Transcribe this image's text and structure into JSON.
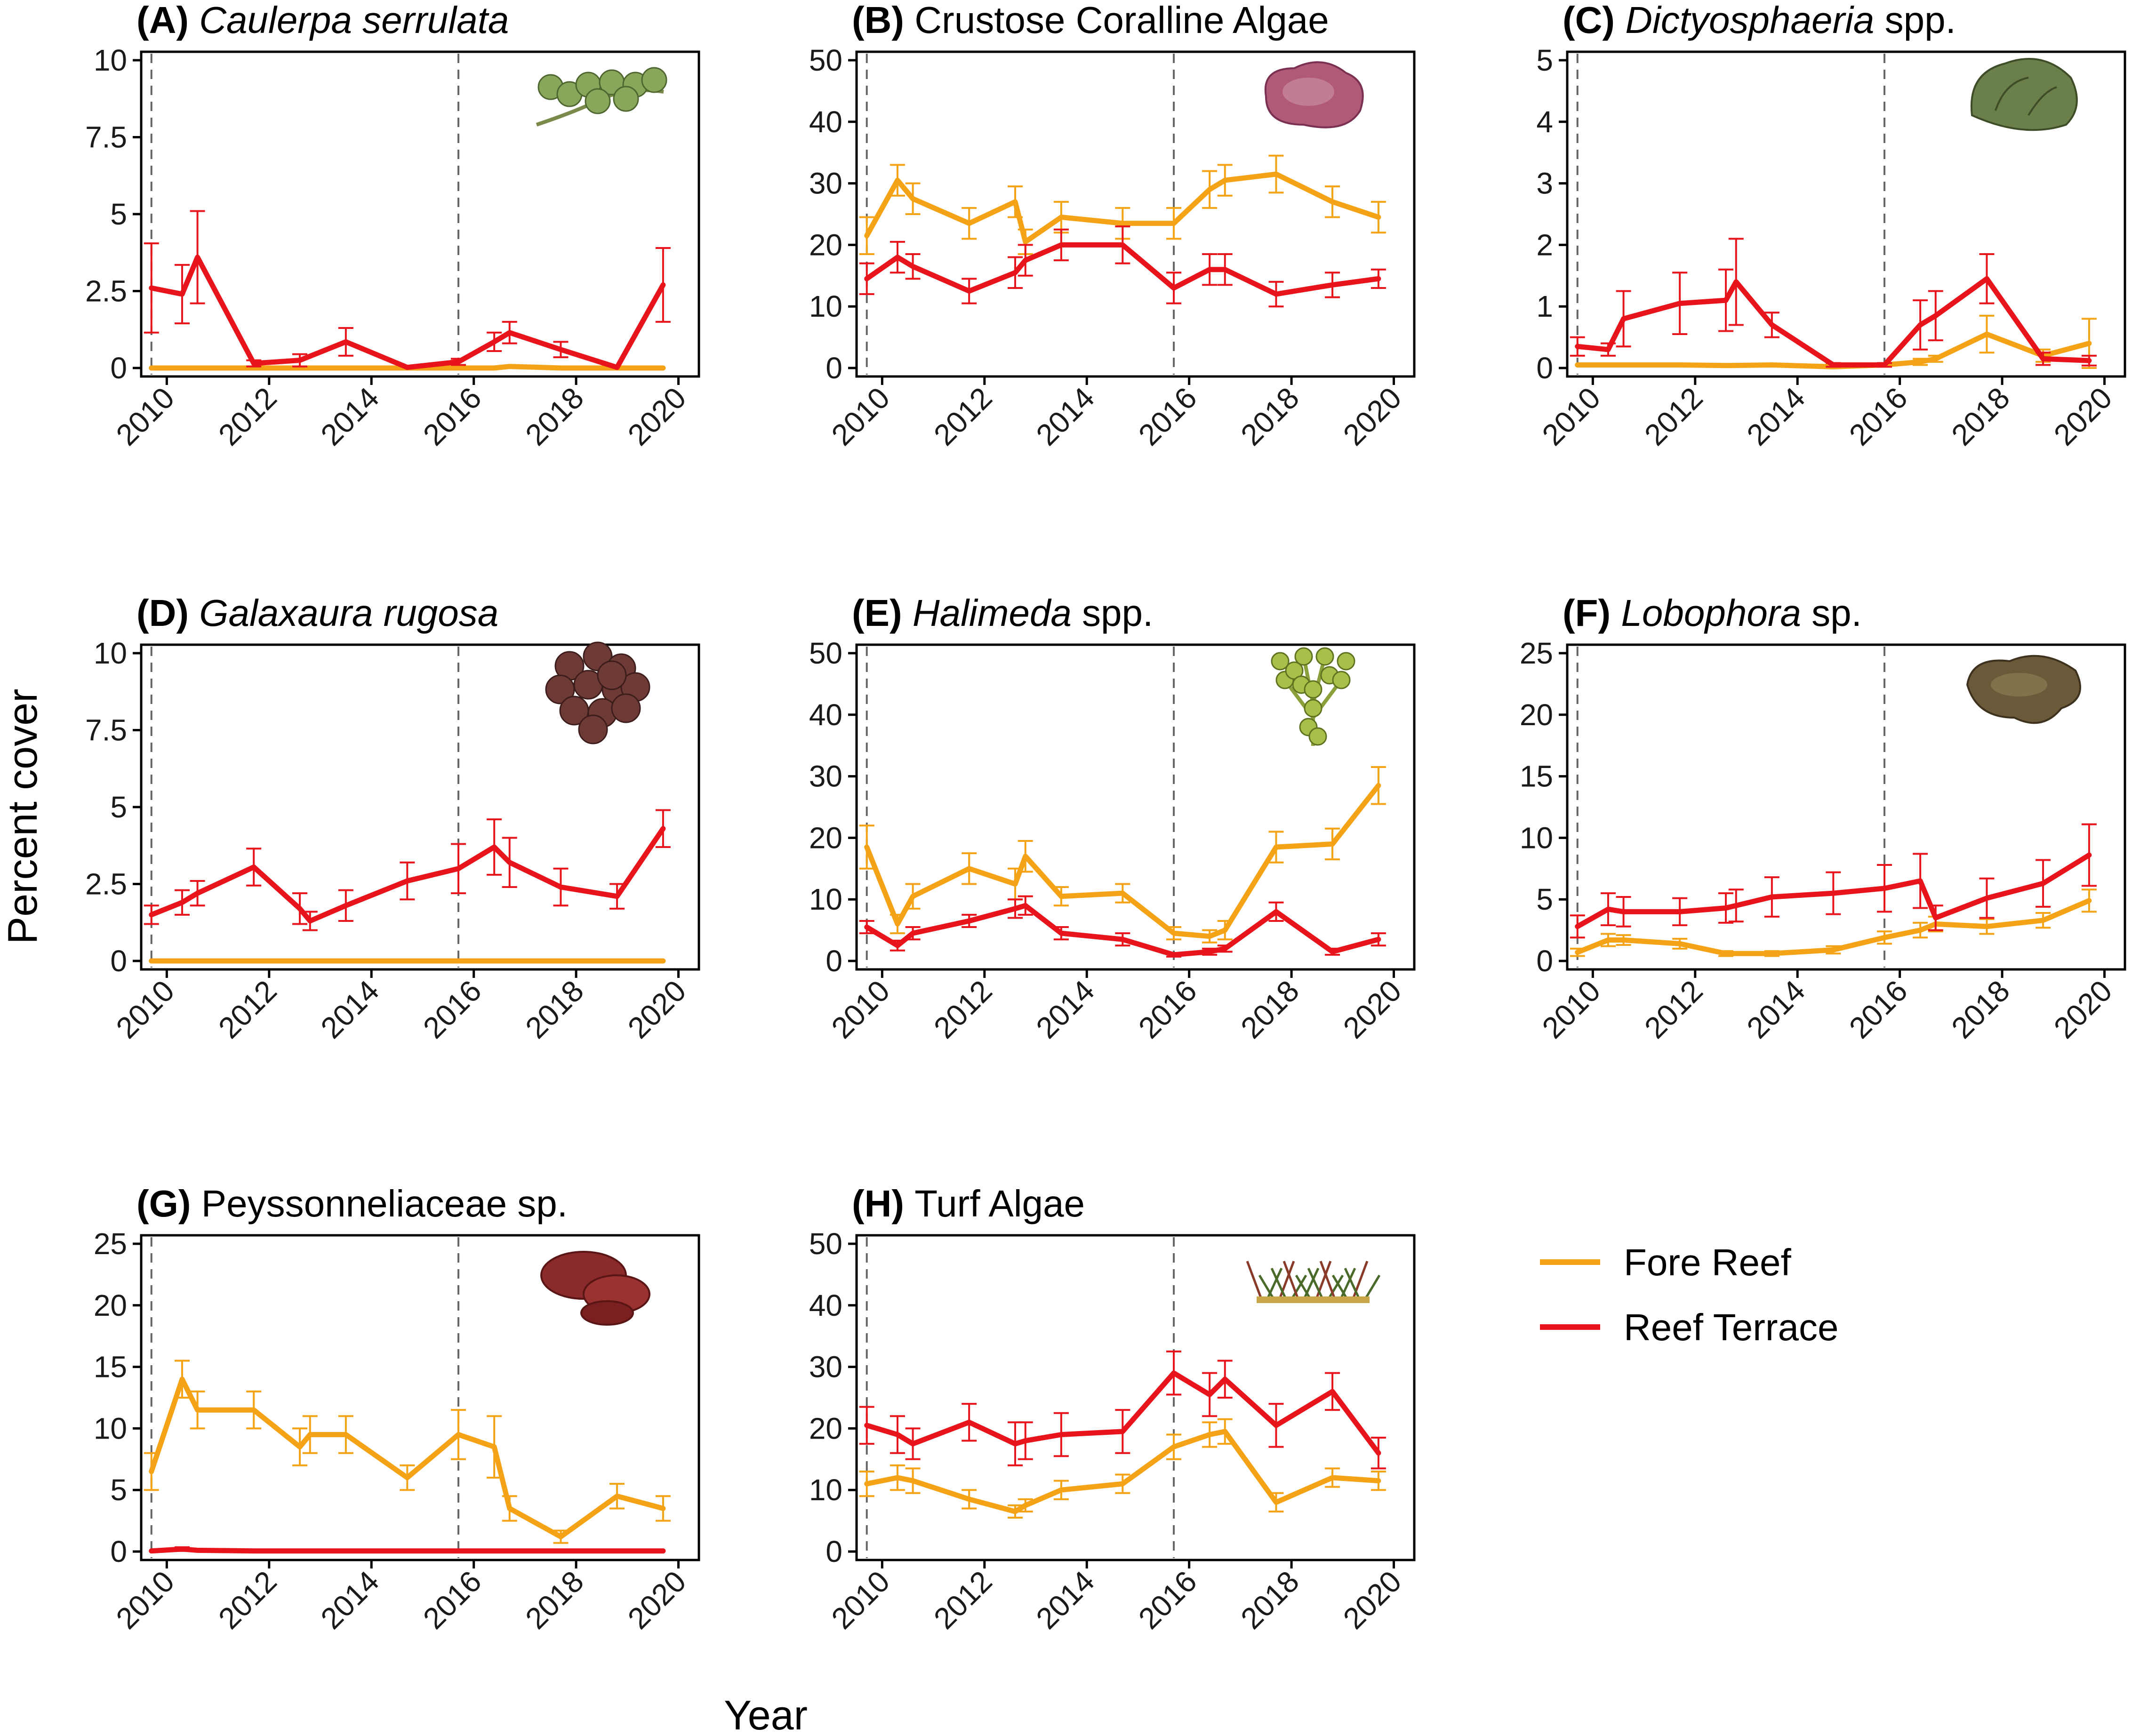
{
  "figure": {
    "ylabel": "Percent cover",
    "xlabel": "Year",
    "event_years": [
      2009.7,
      2015.7
    ],
    "colors": {
      "fore_reef": "#F5A316",
      "reef_terrace": "#E8141C",
      "axis": "#000000",
      "event_line": "#666666"
    }
  },
  "legend": {
    "items": [
      {
        "label": "Fore Reef",
        "color": "#F5A316"
      },
      {
        "label": "Reef Terrace",
        "color": "#E8141C"
      }
    ]
  },
  "chart_data": [
    {
      "type": "line",
      "panel": "(A)",
      "title": "Caulerpa serrulata",
      "title_italic": true,
      "title_suffix": "",
      "icon": "caulerpa-icon",
      "xlim": [
        2009.5,
        2020.4
      ],
      "xticks": [
        2010,
        2012,
        2014,
        2016,
        2018,
        2020
      ],
      "ylim": [
        0,
        10
      ],
      "yticks": [
        "0",
        "2.5",
        "5",
        "7.5",
        "10"
      ],
      "series": [
        {
          "name": "Fore Reef",
          "x": [
            2009.7,
            2010.3,
            2010.6,
            2011.7,
            2012.6,
            2013.5,
            2014.7,
            2015.7,
            2016.4,
            2016.7,
            2017.7,
            2018.8,
            2019.7
          ],
          "y": [
            0,
            0,
            0,
            0,
            0,
            0,
            0,
            0,
            0,
            0.05,
            0,
            0,
            0
          ],
          "err": [
            0,
            0,
            0,
            0,
            0,
            0,
            0,
            0,
            0,
            0.03,
            0,
            0,
            0
          ]
        },
        {
          "name": "Reef Terrace",
          "x": [
            2009.7,
            2010.3,
            2010.6,
            2011.7,
            2012.6,
            2013.5,
            2014.7,
            2015.7,
            2016.4,
            2016.7,
            2017.7,
            2018.8,
            2019.7
          ],
          "y": [
            2.6,
            2.4,
            3.6,
            0.15,
            0.25,
            0.85,
            0.02,
            0.2,
            0.85,
            1.15,
            0.6,
            0.02,
            2.7
          ],
          "err": [
            1.45,
            0.95,
            1.5,
            0.1,
            0.2,
            0.45,
            0.02,
            0.1,
            0.3,
            0.35,
            0.25,
            0.02,
            1.2
          ]
        }
      ]
    },
    {
      "type": "line",
      "panel": "(B)",
      "title": "Crustose Coralline Algae",
      "title_italic": false,
      "title_suffix": "",
      "icon": "cca-icon",
      "xlim": [
        2009.5,
        2020.4
      ],
      "xticks": [
        2010,
        2012,
        2014,
        2016,
        2018,
        2020
      ],
      "ylim": [
        0,
        50
      ],
      "yticks": [
        "0",
        "10",
        "20",
        "30",
        "40",
        "50"
      ],
      "series": [
        {
          "name": "Fore Reef",
          "x": [
            2009.7,
            2010.3,
            2010.6,
            2011.7,
            2012.6,
            2012.8,
            2013.5,
            2014.7,
            2015.7,
            2016.4,
            2016.7,
            2017.7,
            2018.8,
            2019.7
          ],
          "y": [
            21.5,
            30.5,
            27.5,
            23.5,
            27,
            20.5,
            24.5,
            23.5,
            23.5,
            29,
            30.5,
            31.5,
            27,
            24.5
          ],
          "err": [
            3,
            2.5,
            2.5,
            2.5,
            2.5,
            2,
            2.5,
            2.5,
            2.5,
            3,
            2.5,
            3,
            2.5,
            2.5
          ]
        },
        {
          "name": "Reef Terrace",
          "x": [
            2009.7,
            2010.3,
            2010.6,
            2011.7,
            2012.6,
            2012.8,
            2013.5,
            2014.7,
            2015.7,
            2016.4,
            2016.7,
            2017.7,
            2018.8,
            2019.7
          ],
          "y": [
            14.5,
            18,
            16.5,
            12.5,
            15.5,
            17.5,
            20,
            20,
            13,
            16,
            16,
            12,
            13.5,
            14.5
          ],
          "err": [
            2.5,
            2.5,
            2,
            2,
            2.5,
            2.5,
            2.5,
            3,
            2.5,
            2.5,
            2.5,
            2,
            2,
            1.5
          ]
        }
      ]
    },
    {
      "type": "line",
      "panel": "(C)",
      "title": "Dictyosphaeria",
      "title_italic": true,
      "title_suffix": " spp.",
      "icon": "dictyosphaeria-icon",
      "xlim": [
        2009.5,
        2020.4
      ],
      "xticks": [
        2010,
        2012,
        2014,
        2016,
        2018,
        2020
      ],
      "ylim": [
        0,
        5
      ],
      "yticks": [
        "0",
        "1",
        "2",
        "3",
        "4",
        "5"
      ],
      "series": [
        {
          "name": "Fore Reef",
          "x": [
            2009.7,
            2010.3,
            2010.6,
            2011.7,
            2012.6,
            2013.5,
            2014.7,
            2015.7,
            2016.4,
            2016.7,
            2017.7,
            2018.8,
            2019.7
          ],
          "y": [
            0.05,
            0.05,
            0.05,
            0.05,
            0.04,
            0.05,
            0.02,
            0.05,
            0.1,
            0.15,
            0.55,
            0.2,
            0.4
          ],
          "err": [
            0.02,
            0.02,
            0.02,
            0.02,
            0.02,
            0.02,
            0.01,
            0.02,
            0.05,
            0.05,
            0.3,
            0.1,
            0.4
          ]
        },
        {
          "name": "Reef Terrace",
          "x": [
            2009.7,
            2010.3,
            2010.6,
            2011.7,
            2012.6,
            2012.8,
            2013.5,
            2014.7,
            2015.7,
            2016.4,
            2016.7,
            2017.7,
            2018.8,
            2019.7
          ],
          "y": [
            0.35,
            0.3,
            0.8,
            1.05,
            1.1,
            1.4,
            0.7,
            0.05,
            0.05,
            0.7,
            0.85,
            1.45,
            0.15,
            0.12
          ],
          "err": [
            0.15,
            0.1,
            0.45,
            0.5,
            0.5,
            0.7,
            0.2,
            0.03,
            0.03,
            0.4,
            0.4,
            0.4,
            0.1,
            0.08
          ]
        }
      ]
    },
    {
      "type": "line",
      "panel": "(D)",
      "title": "Galaxaura rugosa",
      "title_italic": true,
      "title_suffix": "",
      "icon": "galaxaura-icon",
      "xlim": [
        2009.5,
        2020.4
      ],
      "xticks": [
        2010,
        2012,
        2014,
        2016,
        2018,
        2020
      ],
      "ylim": [
        0,
        10
      ],
      "yticks": [
        "0",
        "2.5",
        "5",
        "7.5",
        "10"
      ],
      "series": [
        {
          "name": "Fore Reef",
          "x": [
            2009.7,
            2010.3,
            2010.6,
            2011.7,
            2012.6,
            2013.5,
            2014.7,
            2015.7,
            2016.4,
            2016.7,
            2017.7,
            2018.8,
            2019.7
          ],
          "y": [
            0,
            0,
            0,
            0,
            0,
            0,
            0,
            0,
            0,
            0,
            0,
            0,
            0
          ],
          "err": [
            0,
            0,
            0,
            0,
            0,
            0,
            0,
            0,
            0,
            0,
            0,
            0,
            0
          ]
        },
        {
          "name": "Reef Terrace",
          "x": [
            2009.7,
            2010.3,
            2010.6,
            2011.7,
            2012.6,
            2012.8,
            2013.5,
            2014.7,
            2015.7,
            2016.4,
            2016.7,
            2017.7,
            2018.8,
            2019.7
          ],
          "y": [
            1.5,
            1.9,
            2.2,
            3.05,
            1.7,
            1.3,
            1.8,
            2.6,
            3.0,
            3.7,
            3.2,
            2.4,
            2.1,
            4.3
          ],
          "err": [
            0.3,
            0.4,
            0.4,
            0.6,
            0.5,
            0.3,
            0.5,
            0.6,
            0.8,
            0.9,
            0.8,
            0.6,
            0.4,
            0.6
          ]
        }
      ]
    },
    {
      "type": "line",
      "panel": "(E)",
      "title": "Halimeda",
      "title_italic": true,
      "title_suffix": " spp.",
      "icon": "halimeda-icon",
      "xlim": [
        2009.5,
        2020.4
      ],
      "xticks": [
        2010,
        2012,
        2014,
        2016,
        2018,
        2020
      ],
      "ylim": [
        0,
        50
      ],
      "yticks": [
        "0",
        "10",
        "20",
        "30",
        "40",
        "50"
      ],
      "series": [
        {
          "name": "Fore Reef",
          "x": [
            2009.7,
            2010.3,
            2010.6,
            2011.7,
            2012.6,
            2012.8,
            2013.5,
            2014.7,
            2015.7,
            2016.4,
            2016.7,
            2017.7,
            2018.8,
            2019.7
          ],
          "y": [
            18.5,
            6,
            10.5,
            15,
            12.5,
            17,
            10.5,
            11,
            4.5,
            4,
            5,
            18.5,
            19,
            28.5
          ],
          "err": [
            3.5,
            1.5,
            2,
            2.5,
            2.5,
            2.5,
            1.5,
            1.5,
            1,
            1,
            1.5,
            2.5,
            2.5,
            3
          ]
        },
        {
          "name": "Reef Terrace",
          "x": [
            2009.7,
            2010.3,
            2010.6,
            2011.7,
            2012.6,
            2012.8,
            2013.5,
            2014.7,
            2015.7,
            2016.4,
            2016.7,
            2017.7,
            2018.8,
            2019.7
          ],
          "y": [
            5.5,
            2.5,
            4.5,
            6.5,
            8.5,
            9,
            4.5,
            3.5,
            1,
            1.5,
            2,
            8,
            1.5,
            3.5
          ],
          "err": [
            1,
            0.8,
            1,
            1,
            1.5,
            1.5,
            1,
            1,
            0.3,
            0.5,
            0.5,
            1.5,
            0.5,
            1
          ]
        }
      ]
    },
    {
      "type": "line",
      "panel": "(F)",
      "title": "Lobophora",
      "title_italic": true,
      "title_suffix": " sp.",
      "icon": "lobophora-icon",
      "xlim": [
        2009.5,
        2020.4
      ],
      "xticks": [
        2010,
        2012,
        2014,
        2016,
        2018,
        2020
      ],
      "ylim": [
        0,
        25
      ],
      "yticks": [
        "0",
        "5",
        "10",
        "15",
        "20",
        "25"
      ],
      "series": [
        {
          "name": "Fore Reef",
          "x": [
            2009.7,
            2010.3,
            2010.6,
            2011.7,
            2012.6,
            2013.5,
            2014.7,
            2015.7,
            2016.4,
            2016.7,
            2017.7,
            2018.8,
            2019.7
          ],
          "y": [
            0.7,
            1.7,
            1.7,
            1.4,
            0.6,
            0.6,
            0.9,
            1.9,
            2.5,
            3,
            2.8,
            3.3,
            4.9
          ],
          "err": [
            0.3,
            0.5,
            0.4,
            0.4,
            0.2,
            0.2,
            0.3,
            0.5,
            0.6,
            0.6,
            0.6,
            0.6,
            0.9
          ]
        },
        {
          "name": "Reef Terrace",
          "x": [
            2009.7,
            2010.3,
            2010.6,
            2011.7,
            2012.6,
            2012.8,
            2013.5,
            2014.7,
            2015.7,
            2016.4,
            2016.7,
            2017.7,
            2018.8,
            2019.7
          ],
          "y": [
            2.8,
            4.2,
            4.0,
            4.0,
            4.3,
            4.5,
            5.2,
            5.5,
            5.9,
            6.5,
            3.5,
            5.1,
            6.3,
            8.6
          ],
          "err": [
            0.9,
            1.3,
            1.2,
            1.1,
            1.2,
            1.3,
            1.6,
            1.7,
            1.9,
            2.2,
            1.0,
            1.6,
            1.9,
            2.5
          ]
        }
      ]
    },
    {
      "type": "line",
      "panel": "(G)",
      "title": "Peyssonneliaceae sp.",
      "title_italic": false,
      "title_suffix": "",
      "icon": "peyssonneliaceae-icon",
      "xlim": [
        2009.5,
        2020.4
      ],
      "xticks": [
        2010,
        2012,
        2014,
        2016,
        2018,
        2020
      ],
      "ylim": [
        0,
        25
      ],
      "yticks": [
        "0",
        "5",
        "10",
        "15",
        "20",
        "25"
      ],
      "series": [
        {
          "name": "Fore Reef",
          "x": [
            2009.7,
            2010.3,
            2010.6,
            2011.7,
            2012.6,
            2012.8,
            2013.5,
            2014.7,
            2015.7,
            2016.4,
            2016.7,
            2017.7,
            2018.8,
            2019.7
          ],
          "y": [
            6.5,
            14,
            11.5,
            11.5,
            8.5,
            9.5,
            9.5,
            6,
            9.5,
            8.5,
            3.5,
            1.2,
            4.5,
            3.5
          ],
          "err": [
            1.5,
            1.5,
            1.5,
            1.5,
            1.5,
            1.5,
            1.5,
            1,
            2,
            2.5,
            1,
            0.5,
            1,
            1
          ]
        },
        {
          "name": "Reef Terrace",
          "x": [
            2009.7,
            2010.3,
            2010.6,
            2011.7,
            2012.6,
            2013.5,
            2014.7,
            2015.7,
            2016.4,
            2016.7,
            2017.7,
            2018.8,
            2019.7
          ],
          "y": [
            0.05,
            0.2,
            0.1,
            0.05,
            0.05,
            0.05,
            0.05,
            0.05,
            0.05,
            0.05,
            0.05,
            0.05,
            0.05
          ],
          "err": [
            0.02,
            0.15,
            0.05,
            0.02,
            0.02,
            0.02,
            0.02,
            0.02,
            0.02,
            0.02,
            0.02,
            0.02,
            0.02
          ]
        }
      ]
    },
    {
      "type": "line",
      "panel": "(H)",
      "title": "Turf Algae",
      "title_italic": false,
      "title_suffix": "",
      "icon": "turf-algae-icon",
      "xlim": [
        2009.5,
        2020.4
      ],
      "xticks": [
        2010,
        2012,
        2014,
        2016,
        2018,
        2020
      ],
      "ylim": [
        0,
        50
      ],
      "yticks": [
        "0",
        "10",
        "20",
        "30",
        "40",
        "50"
      ],
      "series": [
        {
          "name": "Fore Reef",
          "x": [
            2009.7,
            2010.3,
            2010.6,
            2011.7,
            2012.6,
            2012.8,
            2013.5,
            2014.7,
            2015.7,
            2016.4,
            2016.7,
            2017.7,
            2018.8,
            2019.7
          ],
          "y": [
            11,
            12,
            11.5,
            8.5,
            6.5,
            7.5,
            10,
            11,
            17,
            19,
            19.5,
            8,
            12,
            11.5
          ],
          "err": [
            2,
            2,
            2,
            1.5,
            1,
            1,
            1.5,
            1.5,
            2,
            2,
            2,
            1.5,
            1.5,
            1.5
          ]
        },
        {
          "name": "Reef Terrace",
          "x": [
            2009.7,
            2010.3,
            2010.6,
            2011.7,
            2012.6,
            2012.8,
            2013.5,
            2014.7,
            2015.7,
            2016.4,
            2016.7,
            2017.7,
            2018.8,
            2019.7
          ],
          "y": [
            20.5,
            19,
            17.5,
            21,
            17.5,
            18,
            19,
            19.5,
            29,
            25.5,
            28,
            20.5,
            26,
            16
          ],
          "err": [
            3,
            3,
            2.5,
            3,
            3.5,
            3,
            3.5,
            3.5,
            3.5,
            3.5,
            3,
            3.5,
            3,
            2.5
          ]
        }
      ]
    }
  ]
}
